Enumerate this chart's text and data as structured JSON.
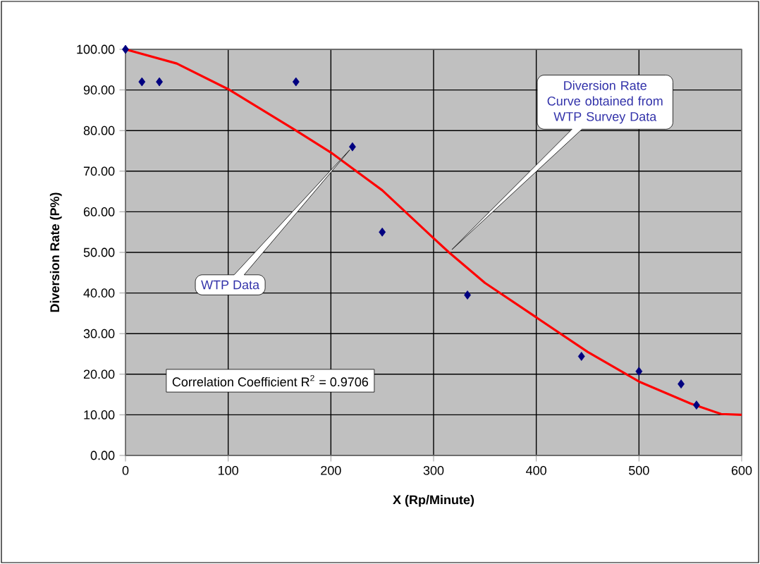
{
  "chart_data": {
    "type": "scatter",
    "xlabel": "X (Rp/Minute)",
    "ylabel": "Diversion Rate (P%)",
    "xlim": [
      0,
      600
    ],
    "xticks": [
      0,
      100,
      200,
      300,
      400,
      500,
      600
    ],
    "ylim": [
      0,
      100
    ],
    "yticks": [
      {
        "value": 0,
        "label": "0.00"
      },
      {
        "value": 10,
        "label": "10.00"
      },
      {
        "value": 20,
        "label": "20.00"
      },
      {
        "value": 30,
        "label": "30.00"
      },
      {
        "value": 40,
        "label": "40.00"
      },
      {
        "value": 50,
        "label": "50.00"
      },
      {
        "value": 60,
        "label": "60.00"
      },
      {
        "value": 70,
        "label": "70.00"
      },
      {
        "value": 80,
        "label": "80.00"
      },
      {
        "value": 90,
        "label": "90.00"
      },
      {
        "value": 100,
        "label": "100.00"
      }
    ],
    "grid": true,
    "series": [
      {
        "color": "#000080",
        "marker": "diamond",
        "x": [
          0,
          16,
          33,
          166,
          221,
          250,
          333,
          444,
          500,
          541,
          556
        ],
        "values": [
          100,
          92,
          92,
          92,
          76,
          55,
          39.5,
          24.4,
          20.7,
          17.6,
          12.4
        ]
      },
      {
        "type": "line",
        "color": "#ff0000",
        "marker": "none",
        "x": [
          0,
          50,
          100,
          166,
          200,
          250,
          300,
          315,
          350,
          400,
          450,
          500,
          550,
          580,
          600
        ],
        "values": [
          100,
          96.5,
          90.2,
          80,
          74.6,
          65.3,
          53.5,
          50,
          42.5,
          34,
          25.5,
          18.2,
          12.8,
          10.2,
          10
        ]
      }
    ],
    "annotations": [
      "WTP Data",
      "Diversion Rate Curve obtained from WTP Survey Data",
      "Correlation Coefficient R$^{2}$ = 0.9706"
    ]
  }
}
